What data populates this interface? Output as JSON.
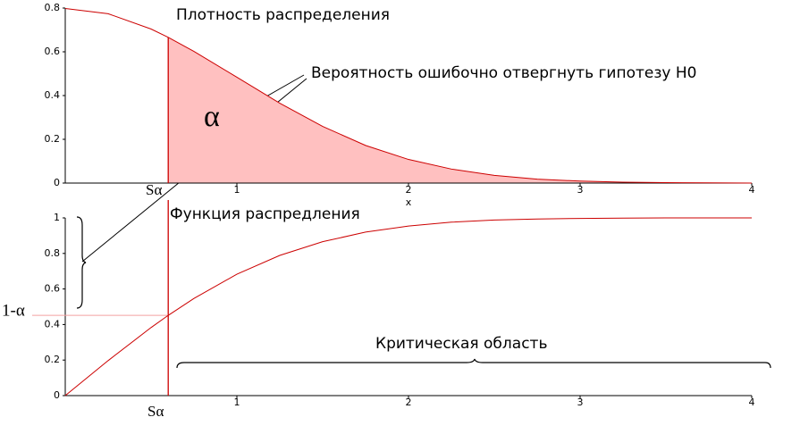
{
  "chart_data": [
    {
      "type": "area",
      "title": "Плотность распределения",
      "x_label": "x",
      "annotations": [
        "Вероятность ошибочно отвергнуть гипотезу H0",
        "α",
        "Sα"
      ],
      "threshold": 0.6,
      "x": [
        0,
        0.25,
        0.5,
        0.6,
        0.75,
        1,
        1.25,
        1.5,
        1.75,
        2,
        2.25,
        2.5,
        2.75,
        3,
        3.25,
        3.5,
        3.75,
        4
      ],
      "values": [
        0.798,
        0.774,
        0.704,
        0.666,
        0.602,
        0.484,
        0.365,
        0.259,
        0.172,
        0.108,
        0.064,
        0.035,
        0.018,
        0.009,
        0.004,
        0.002,
        0.001,
        0.0
      ],
      "color": "#cc0000",
      "fill": "#ffc0c0",
      "xlim": [
        0,
        4
      ],
      "ylim": [
        0,
        0.8
      ],
      "xticks": [
        1,
        2,
        3,
        4
      ],
      "yticks": [
        0,
        0.2,
        0.4,
        0.6,
        0.8
      ]
    },
    {
      "type": "line",
      "title": "Функция распредления",
      "annotations": [
        "1-α",
        "Sα",
        "Критическая область"
      ],
      "threshold": 0.6,
      "level": 0.4515,
      "x": [
        0,
        0.25,
        0.5,
        0.6,
        0.75,
        1,
        1.25,
        1.5,
        1.75,
        2,
        2.25,
        2.5,
        2.75,
        3,
        3.25,
        3.5,
        3.75,
        4
      ],
      "values": [
        0,
        0.197,
        0.383,
        0.4515,
        0.547,
        0.683,
        0.789,
        0.866,
        0.92,
        0.954,
        0.976,
        0.988,
        0.994,
        0.997,
        0.999,
        1.0,
        1.0,
        1.0
      ],
      "color": "#cc0000",
      "xlim": [
        0,
        4
      ],
      "ylim": [
        0,
        1
      ],
      "xticks": [
        1,
        2,
        3,
        4
      ],
      "yticks": [
        0,
        0.2,
        0.4,
        0.6,
        0.8,
        1
      ]
    }
  ]
}
